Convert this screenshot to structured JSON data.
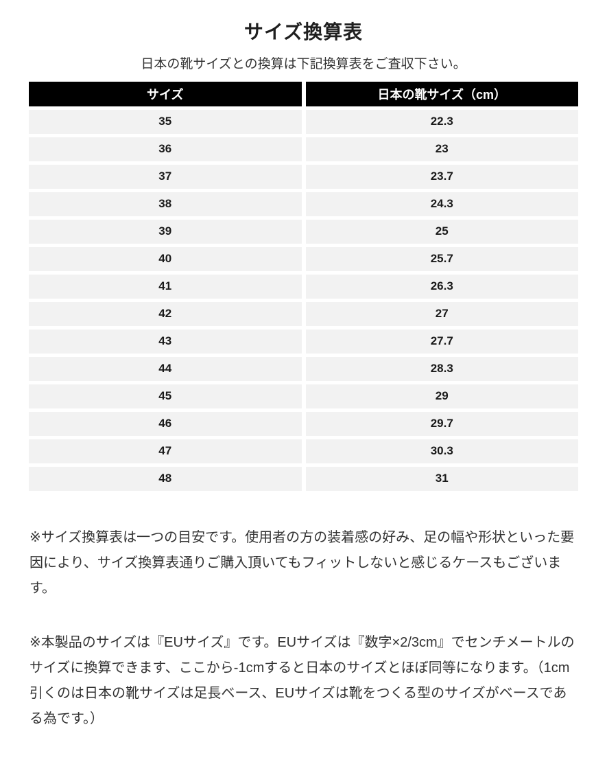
{
  "header": {
    "title": "サイズ換算表",
    "subtitle": "日本の靴サイズとの換算は下記換算表をご査収下さい。"
  },
  "size_table": {
    "columns": [
      "サイズ",
      "日本の靴サイズ（cm）"
    ],
    "rows": [
      [
        "35",
        "22.3"
      ],
      [
        "36",
        "23"
      ],
      [
        "37",
        "23.7"
      ],
      [
        "38",
        "24.3"
      ],
      [
        "39",
        "25"
      ],
      [
        "40",
        "25.7"
      ],
      [
        "41",
        "26.3"
      ],
      [
        "42",
        "27"
      ],
      [
        "43",
        "27.7"
      ],
      [
        "44",
        "28.3"
      ],
      [
        "45",
        "29"
      ],
      [
        "46",
        "29.7"
      ],
      [
        "47",
        "30.3"
      ],
      [
        "48",
        "31"
      ]
    ]
  },
  "notes": {
    "note1": "※サイズ換算表は一つの目安です。使用者の方の装着感の好み、足の幅や形状といった要因により、サイズ換算表通りご購入頂いてもフィットしないと感じるケースもございます。",
    "note2": "※本製品のサイズは『EUサイズ』です。EUサイズは『数字×2/3cm』でセンチメートルのサイズに換算できます、ここから-1cmすると日本のサイズとほぼ同等になります。（1cm引くのは日本の靴サイズは足長ベース、EUサイズは靴をつくる型のサイズがベースである為です。）"
  },
  "colors": {
    "header_bg": "#000000",
    "header_text": "#ffffff",
    "row_bg": "#f2f2f2",
    "body_text": "#333333",
    "cell_text": "#1a1a1a",
    "page_bg": "#ffffff"
  }
}
